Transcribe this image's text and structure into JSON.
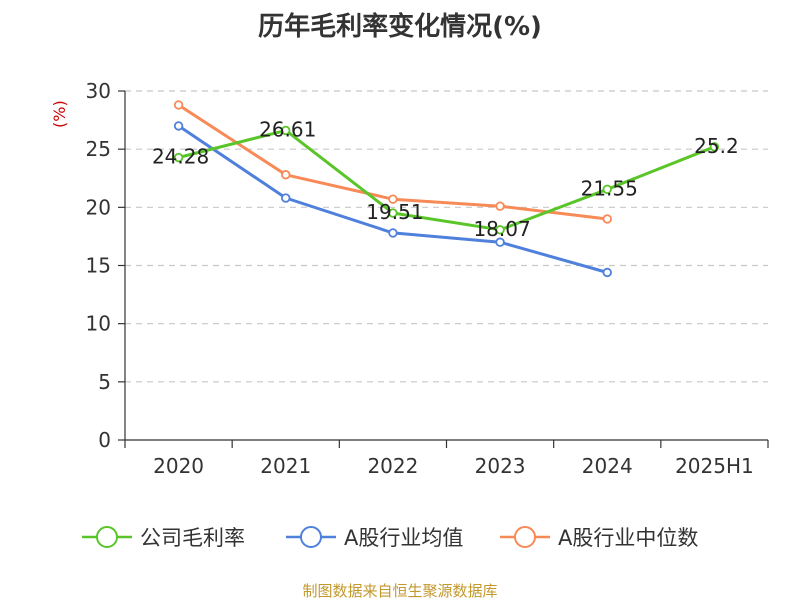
{
  "colors": {
    "series_1": "#5ac528",
    "series_2": "#4f80dc",
    "series_3": "#f78a57",
    "axis": "#333333",
    "grid": "#c8c8c8",
    "unit": "#cc0000",
    "source": "#c3982d"
  },
  "footer": {
    "source": "制图数据来自恒生聚源数据库"
  },
  "chart_data": {
    "type": "line",
    "title": "历年毛利率变化情况(%)",
    "y_unit": "(%)",
    "xlabel": "",
    "ylabel": "",
    "categories": [
      "2020",
      "2021",
      "2022",
      "2023",
      "2024",
      "2025H1"
    ],
    "ylim": [
      0,
      30
    ],
    "yticks": [
      0,
      5,
      10,
      15,
      20,
      25,
      30
    ],
    "grid": true,
    "legend_position": "bottom",
    "series": [
      {
        "name": "公司毛利率",
        "values": [
          24.28,
          26.61,
          19.51,
          18.07,
          21.55,
          25.2
        ],
        "labels": [
          "24.28",
          "26.61",
          "19.51",
          "18.07",
          "21.55",
          "25.2"
        ],
        "show_labels": true
      },
      {
        "name": "A股行业均值",
        "values": [
          27.0,
          20.8,
          17.8,
          17.0,
          14.4,
          null
        ],
        "show_labels": false
      },
      {
        "name": "A股行业中位数",
        "values": [
          28.8,
          22.8,
          20.7,
          20.1,
          19.0,
          null
        ],
        "show_labels": false
      }
    ]
  }
}
